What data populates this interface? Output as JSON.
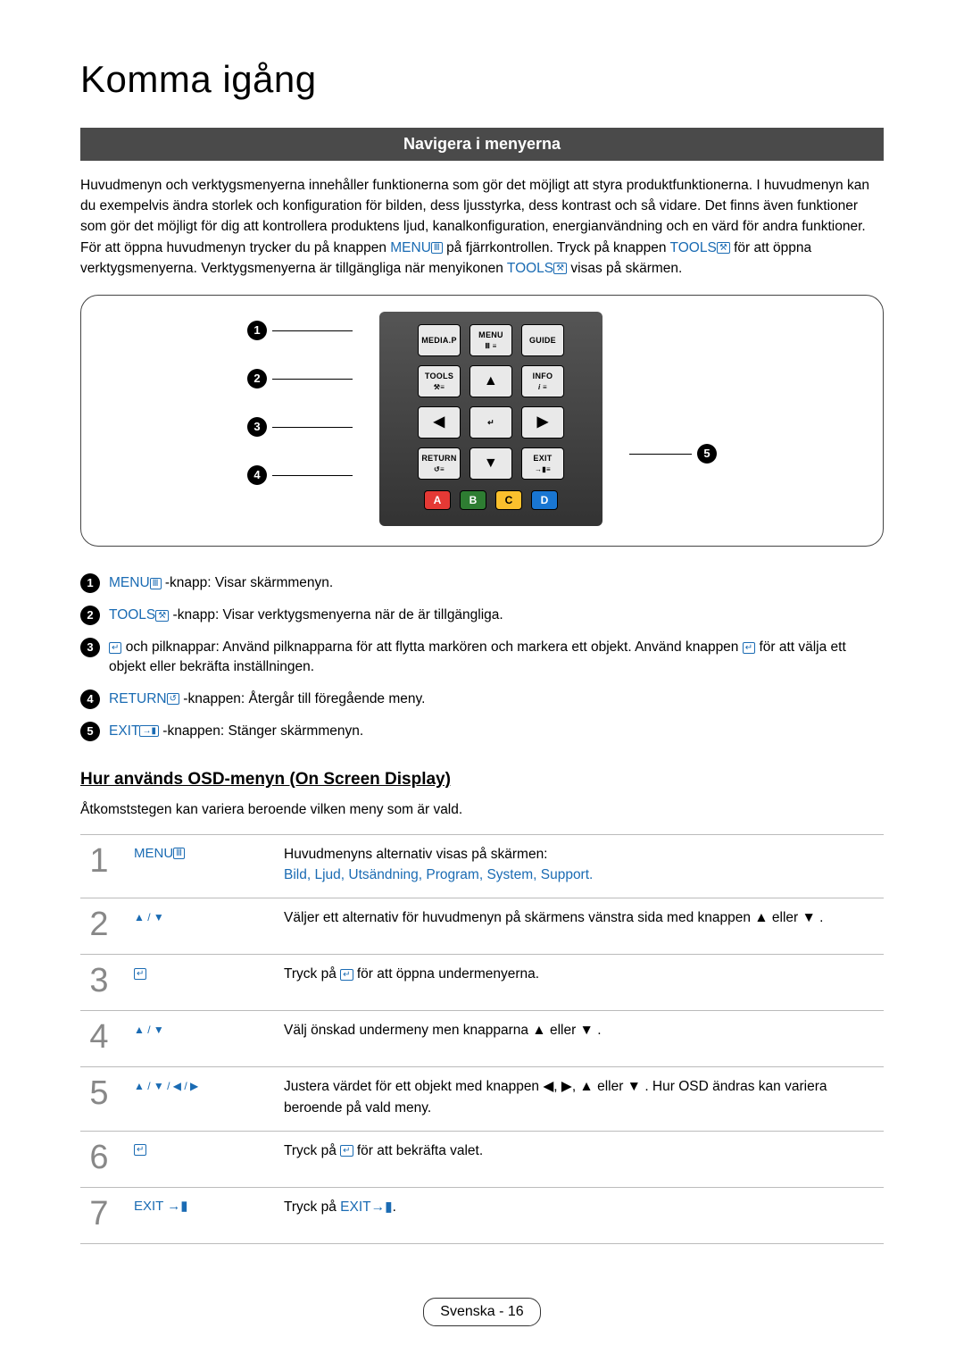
{
  "page": {
    "title": "Komma igång",
    "section_heading": "Navigera i menyerna",
    "footer": "Svenska - 16"
  },
  "intro": {
    "p1a": "Huvudmenyn och verktygsmenyerna innehåller funktionerna som gör det möjligt att styra produktfunktionerna. I huvudmenyn kan du exempelvis ändra storlek och konfiguration för bilden, dess ljusstyrka, dess kontrast och så vidare. Det finns även funktioner som gör det möjligt för dig att kontrollera produktens ljud, kanalkonfiguration, energianvändning och en värd för andra funktioner. För att öppna huvudmenyn trycker du på knappen ",
    "menu_label": "MENU",
    "p1b": " på fjärrkontrollen. Tryck på knappen ",
    "tools_label": "TOOLS",
    "p1c": " för att öppna verktygsmenyerna. Verktygsmenyerna är tillgängliga när menyikonen ",
    "p1d": " visas på skärmen."
  },
  "remote": {
    "callouts": [
      "1",
      "2",
      "3",
      "4",
      "5"
    ],
    "row1": {
      "mediap": "MEDIA.P",
      "menu": "MENU",
      "guide": "GUIDE"
    },
    "row2": {
      "tools": "TOOLS",
      "info": "INFO"
    },
    "row4": {
      "return": "RETURN",
      "exit": "EXIT"
    },
    "colors": {
      "a": "A",
      "b": "B",
      "c": "C",
      "d": "D"
    }
  },
  "legend": {
    "i1_label": "MENU",
    "i1_text": "-knapp: Visar skärmmenyn.",
    "i2_label": "TOOLS",
    "i2_text": "-knapp: Visar verktygsmenyerna när de är tillgängliga.",
    "i3_text_a": " och pilknappar: Använd pilknapparna för att flytta markören och markera ett objekt. Använd knappen ",
    "i3_text_b": " för att välja ett objekt eller bekräfta inställningen.",
    "i4_label": "RETURN",
    "i4_text": "-knappen: Återgår till föregående meny.",
    "i5_label": "EXIT",
    "i5_text": "-knappen: Stänger skärmmenyn."
  },
  "osd": {
    "heading": "Hur används OSD-menyn (On Screen Display)",
    "subnote": "Åtkomststegen kan variera beroende vilken meny som är vald."
  },
  "steps": [
    {
      "num": "1",
      "key_label": "MENU",
      "desc_a": "Huvudmenyns alternativ visas på skärmen:",
      "desc_links": "Bild, Ljud, Utsändning, Program, System, Support."
    },
    {
      "num": "2",
      "key_symbols": "▲ / ▼",
      "desc": "Väljer ett alternativ för huvudmenyn på skärmens vänstra sida med knappen ▲ eller ▼ ."
    },
    {
      "num": "3",
      "key_enter": "↵",
      "desc_a": "Tryck på ",
      "desc_b": " för att öppna undermenyerna."
    },
    {
      "num": "4",
      "key_symbols": "▲ / ▼",
      "desc": "Välj önskad undermeny men knapparna ▲ eller ▼ ."
    },
    {
      "num": "5",
      "key_symbols": "▲ / ▼ / ◀ / ▶",
      "desc": "Justera värdet för ett objekt med knappen ◀, ▶, ▲ eller ▼ . Hur OSD ändras kan variera beroende på vald meny."
    },
    {
      "num": "6",
      "key_enter": "↵",
      "desc_a": "Tryck på ",
      "desc_b": " för att bekräfta valet."
    },
    {
      "num": "7",
      "key_label": "EXIT",
      "desc_a": "Tryck på ",
      "desc_label": "EXIT",
      "desc_b": "."
    }
  ],
  "colors": {
    "link_blue": "#1a6bb3",
    "bar_bg": "#4a4a4a",
    "step_num_gray": "#888888"
  }
}
